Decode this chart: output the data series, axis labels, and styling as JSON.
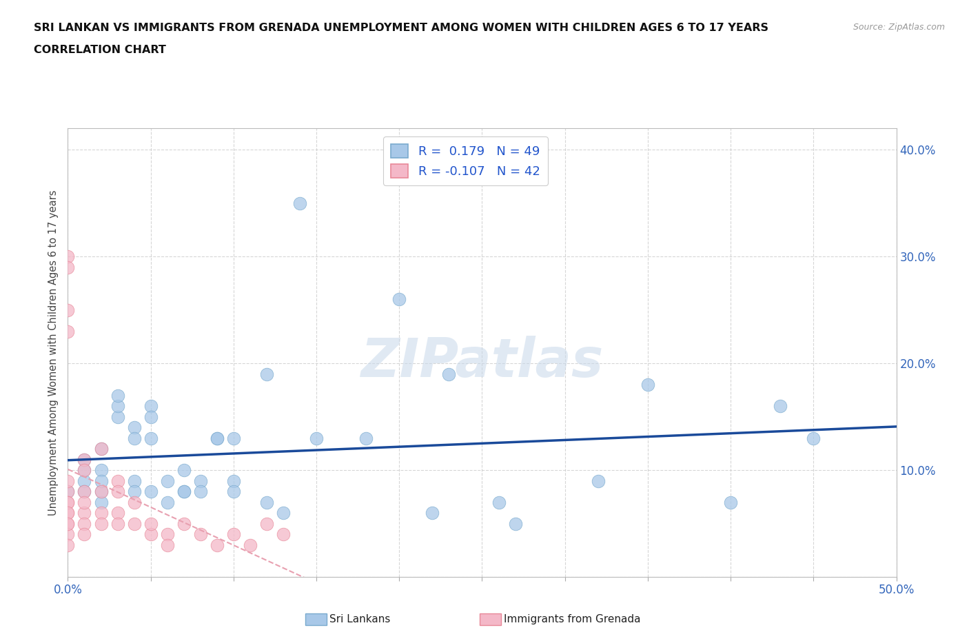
{
  "title_line1": "SRI LANKAN VS IMMIGRANTS FROM GRENADA UNEMPLOYMENT AMONG WOMEN WITH CHILDREN AGES 6 TO 17 YEARS",
  "title_line2": "CORRELATION CHART",
  "source_text": "Source: ZipAtlas.com",
  "ylabel": "Unemployment Among Women with Children Ages 6 to 17 years",
  "xlim": [
    0.0,
    0.5
  ],
  "ylim": [
    0.0,
    0.42
  ],
  "xticks": [
    0.0,
    0.05,
    0.1,
    0.15,
    0.2,
    0.25,
    0.3,
    0.35,
    0.4,
    0.45,
    0.5
  ],
  "yticks": [
    0.0,
    0.1,
    0.2,
    0.3,
    0.4
  ],
  "background_color": "#ffffff",
  "grid_color": "#cccccc",
  "watermark_text": "ZIPatlas",
  "sri_lankan_color": "#a8c8e8",
  "grenada_color": "#f4b8c8",
  "sri_lankan_edge_color": "#7aaace",
  "grenada_edge_color": "#e88898",
  "sri_lankan_line_color": "#1a4a9a",
  "grenada_line_color": "#e8a0b0",
  "sri_lankan_R": 0.179,
  "sri_lankan_N": 49,
  "grenada_R": -0.107,
  "grenada_N": 42,
  "sri_lankan_x": [
    0.0,
    0.01,
    0.01,
    0.01,
    0.01,
    0.02,
    0.02,
    0.02,
    0.02,
    0.02,
    0.03,
    0.03,
    0.03,
    0.04,
    0.04,
    0.04,
    0.04,
    0.05,
    0.05,
    0.05,
    0.05,
    0.06,
    0.06,
    0.07,
    0.07,
    0.07,
    0.08,
    0.08,
    0.09,
    0.09,
    0.1,
    0.1,
    0.1,
    0.12,
    0.12,
    0.13,
    0.14,
    0.15,
    0.18,
    0.2,
    0.22,
    0.23,
    0.26,
    0.27,
    0.32,
    0.35,
    0.4,
    0.43,
    0.45
  ],
  "sri_lankan_y": [
    0.08,
    0.09,
    0.1,
    0.08,
    0.11,
    0.12,
    0.1,
    0.08,
    0.09,
    0.07,
    0.15,
    0.16,
    0.17,
    0.14,
    0.13,
    0.09,
    0.08,
    0.16,
    0.15,
    0.13,
    0.08,
    0.07,
    0.09,
    0.08,
    0.08,
    0.1,
    0.09,
    0.08,
    0.13,
    0.13,
    0.09,
    0.13,
    0.08,
    0.19,
    0.07,
    0.06,
    0.35,
    0.13,
    0.13,
    0.26,
    0.06,
    0.19,
    0.07,
    0.05,
    0.09,
    0.18,
    0.07,
    0.16,
    0.13
  ],
  "grenada_x": [
    0.0,
    0.0,
    0.0,
    0.0,
    0.0,
    0.0,
    0.0,
    0.0,
    0.0,
    0.0,
    0.0,
    0.0,
    0.0,
    0.0,
    0.01,
    0.01,
    0.01,
    0.01,
    0.01,
    0.01,
    0.01,
    0.02,
    0.02,
    0.02,
    0.02,
    0.03,
    0.03,
    0.03,
    0.03,
    0.04,
    0.04,
    0.05,
    0.05,
    0.06,
    0.06,
    0.07,
    0.08,
    0.09,
    0.1,
    0.11,
    0.12,
    0.13
  ],
  "grenada_y": [
    0.3,
    0.29,
    0.08,
    0.09,
    0.07,
    0.06,
    0.05,
    0.07,
    0.06,
    0.04,
    0.05,
    0.03,
    0.25,
    0.23,
    0.11,
    0.1,
    0.08,
    0.06,
    0.07,
    0.05,
    0.04,
    0.12,
    0.08,
    0.06,
    0.05,
    0.09,
    0.08,
    0.06,
    0.05,
    0.07,
    0.05,
    0.04,
    0.05,
    0.04,
    0.03,
    0.05,
    0.04,
    0.03,
    0.04,
    0.03,
    0.05,
    0.04
  ]
}
